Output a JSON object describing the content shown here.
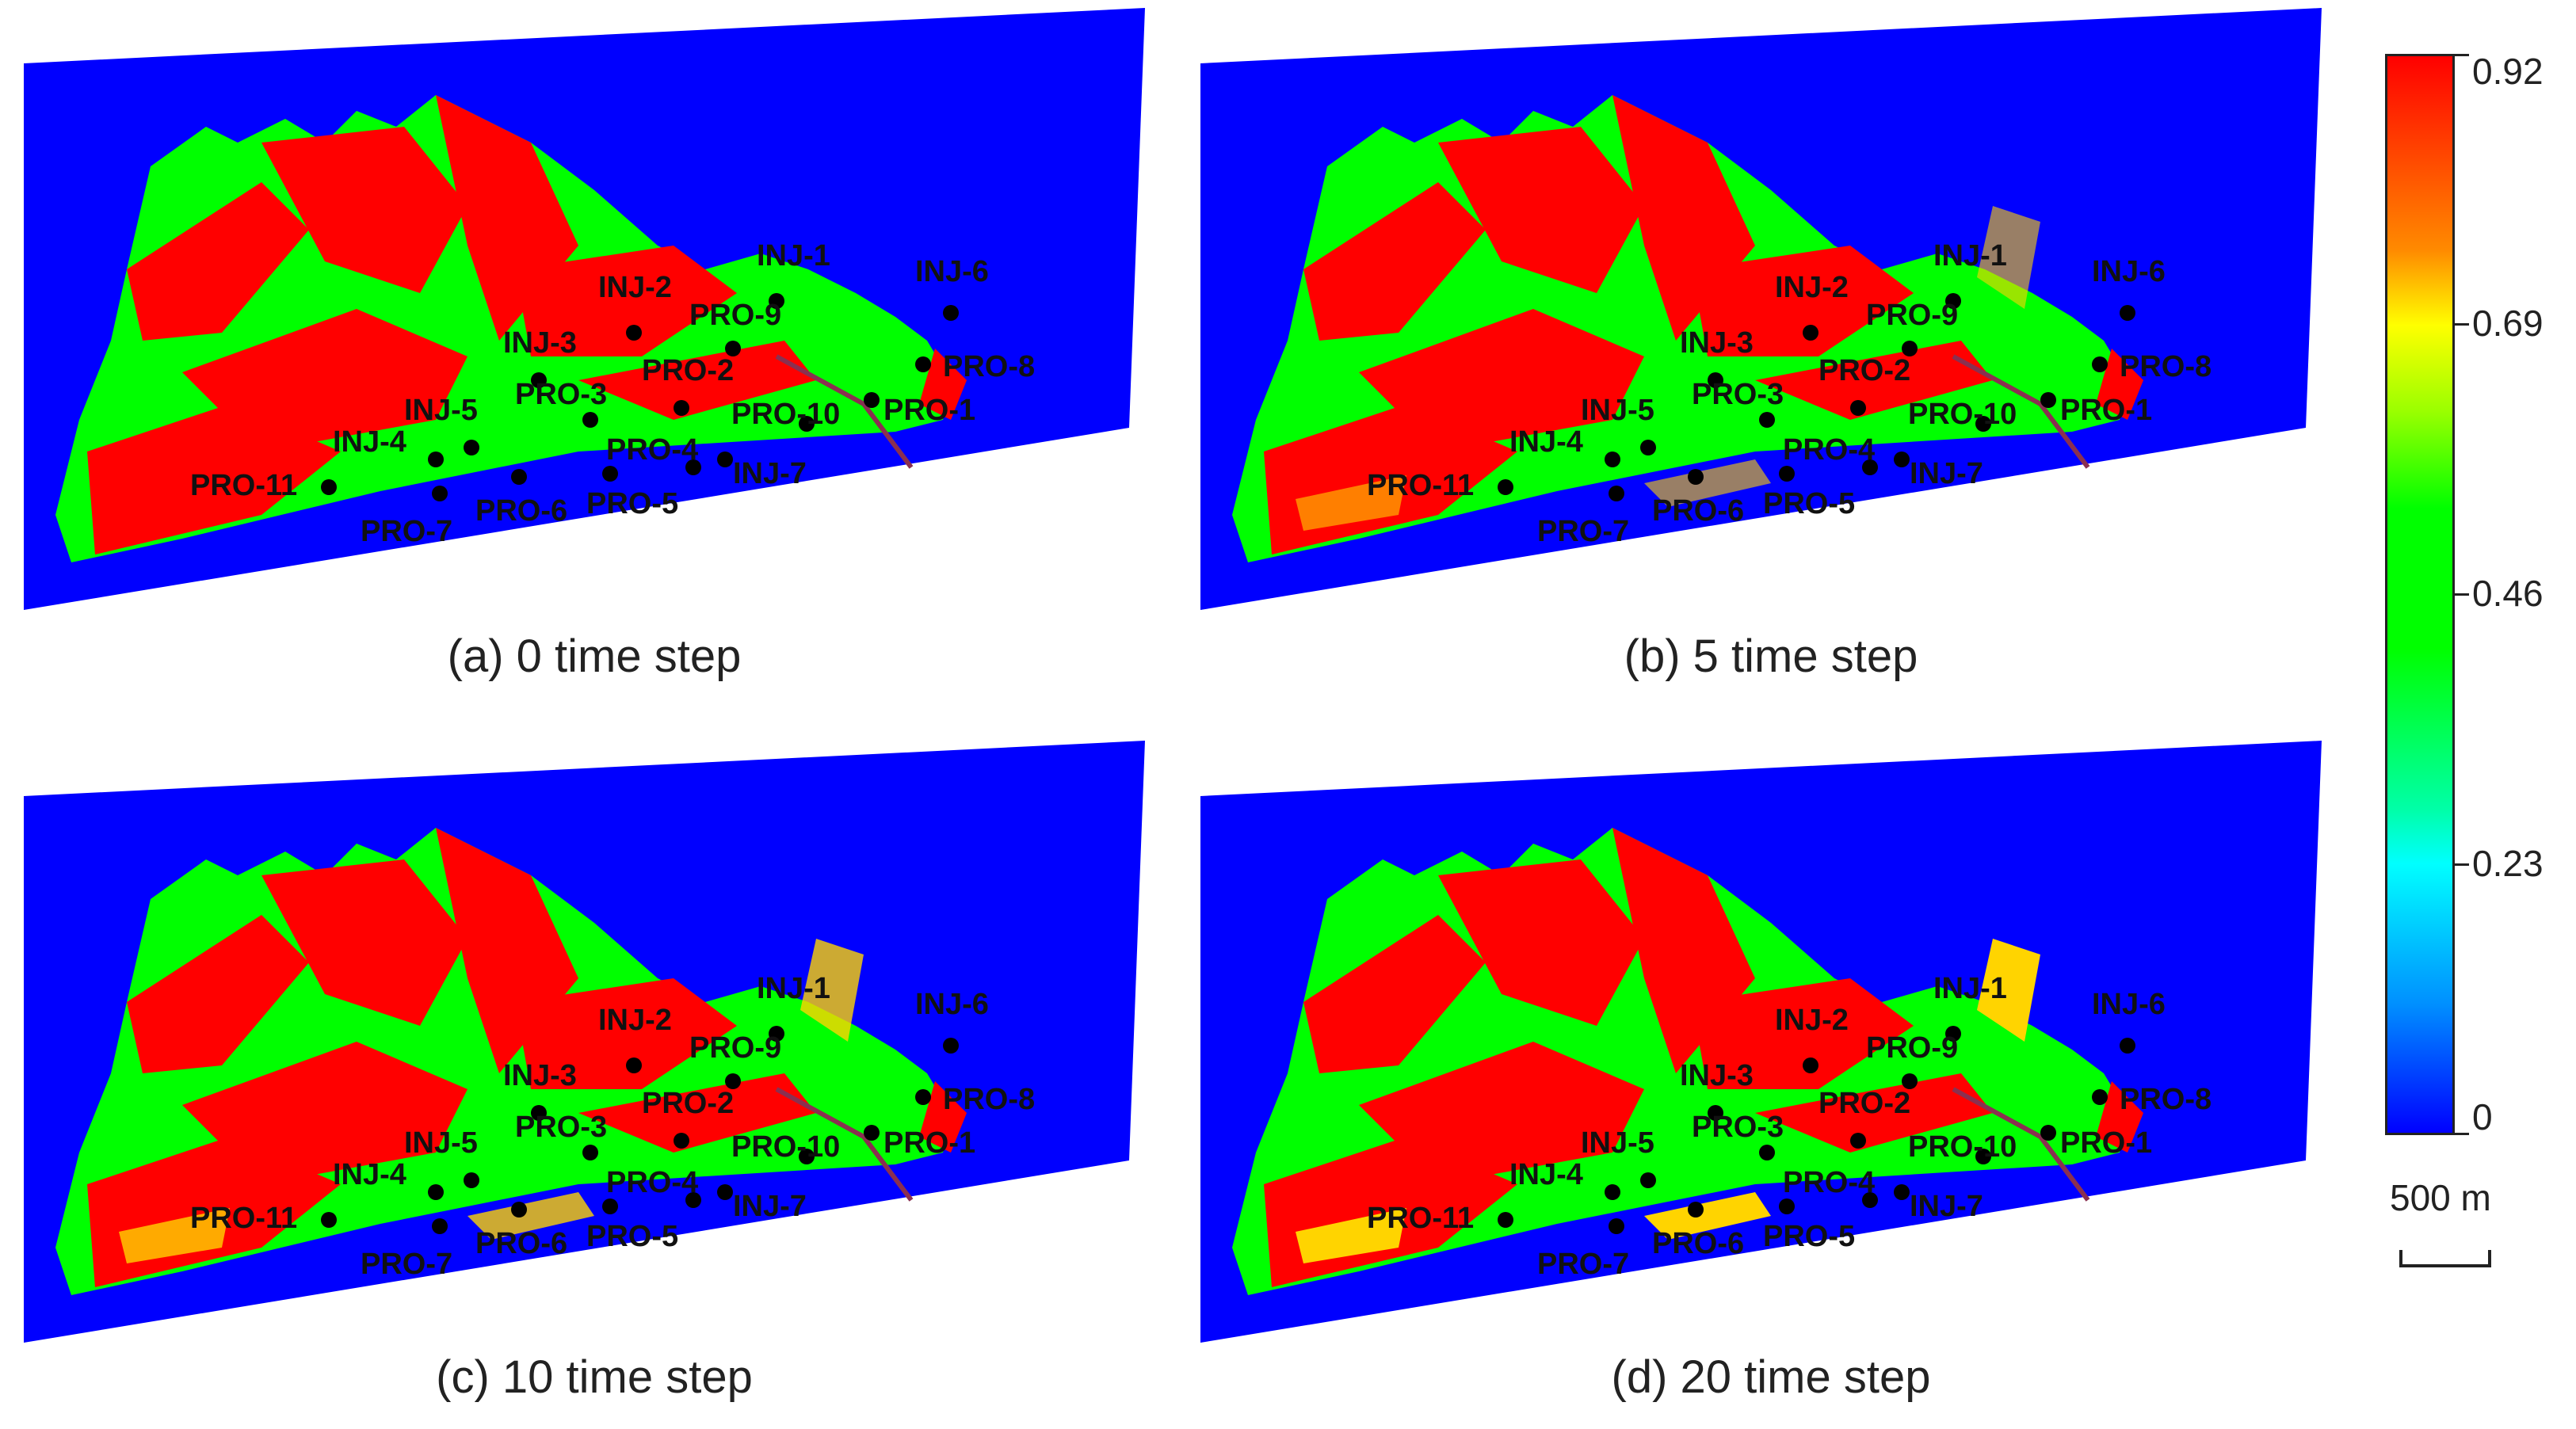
{
  "panels": [
    {
      "id": "a",
      "caption": "(a) 0 time step"
    },
    {
      "id": "b",
      "caption": "(b) 5 time step"
    },
    {
      "id": "c",
      "caption": "(c) 10 time step"
    },
    {
      "id": "d",
      "caption": "(d) 20 time step"
    }
  ],
  "wells": [
    "INJ-1",
    "INJ-2",
    "INJ-3",
    "INJ-4",
    "INJ-5",
    "INJ-6",
    "INJ-7",
    "PRO-1",
    "PRO-2",
    "PRO-3",
    "PRO-4",
    "PRO-5",
    "PRO-6",
    "PRO-7",
    "PRO-8",
    "PRO-9",
    "PRO-10",
    "PRO-11"
  ],
  "colorbar": {
    "max": "0.92",
    "ticks": [
      "0.92",
      "0.69",
      "0.46",
      "0.23",
      "0"
    ],
    "colors": [
      "#ff0000",
      "#ffff00",
      "#00ff00",
      "#00ffff",
      "#0000ff"
    ]
  },
  "scale_bar": {
    "label": "500 m"
  },
  "colors": {
    "background_field": "#0000ff",
    "high": "#ff0000",
    "mid": "#00ff00",
    "well_marker": "#000000"
  }
}
